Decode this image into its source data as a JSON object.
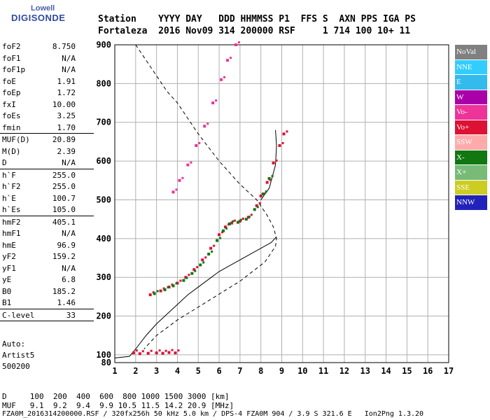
{
  "logo": {
    "line1": "Lowell",
    "line2": "DIGISONDE"
  },
  "header": {
    "line1": "Station    YYYY DAY   DDD HHMMSS P1  FFS S  AXN PPS IGA PS",
    "line2": "Fortaleza  2016 Nov09 314 200000 RSF     1 714 100 10+ 11"
  },
  "params": {
    "group1": [
      {
        "name": "foF2",
        "value": "8.750"
      },
      {
        "name": "foF1",
        "value": "N/A"
      },
      {
        "name": "foF1p",
        "value": "N/A"
      },
      {
        "name": "foE",
        "value": "1.91"
      },
      {
        "name": "foEp",
        "value": "1.72"
      },
      {
        "name": "fxI",
        "value": "10.00"
      },
      {
        "name": "foEs",
        "value": "3.25"
      },
      {
        "name": "fmin",
        "value": "1.70"
      }
    ],
    "group2": [
      {
        "name": "MUF(D)",
        "value": "20.89"
      },
      {
        "name": "M(D)",
        "value": "2.39"
      },
      {
        "name": "D",
        "value": "N/A"
      }
    ],
    "group3": [
      {
        "name": "h`F",
        "value": "255.0"
      },
      {
        "name": "h`F2",
        "value": "255.0"
      },
      {
        "name": "h`E",
        "value": "100.7"
      },
      {
        "name": "h`Es",
        "value": "105.0"
      }
    ],
    "group4": [
      {
        "name": "hmF2",
        "value": "405.1"
      },
      {
        "name": "hmF1",
        "value": "N/A"
      },
      {
        "name": "hmE",
        "value": "96.9"
      },
      {
        "name": "yF2",
        "value": "159.2"
      },
      {
        "name": "yF1",
        "value": "N/A"
      },
      {
        "name": "yE",
        "value": "6.8"
      },
      {
        "name": "B0",
        "value": "185.2"
      },
      {
        "name": "B1",
        "value": "1.46"
      }
    ],
    "group5": [
      {
        "name": "C-level",
        "value": "33"
      }
    ]
  },
  "autoscale": {
    "line1": "Auto:",
    "line2": "Artist5",
    "line3": "500200"
  },
  "footer": {
    "d_line": "D     100  200  400  600  800 1000 1500 3000 [km]",
    "muf_line": "MUF   9.1  9.2  9.4  9.9 10.5 11.5 14.2 20.9 [MHz]",
    "file_line": "FZA0M_2016314200000.RSF / 320fx256h 50 kHz 5.0 km / DPS-4 FZA0M 904 / 3.9 S 321.6 E   Ion2Png 1.3.20"
  },
  "legend": [
    {
      "label": "NoVal",
      "color": "#808080"
    },
    {
      "label": "NNE",
      "color": "#33ccff"
    },
    {
      "label": "E",
      "color": "#33bbee"
    },
    {
      "label": "W",
      "color": "#aa00aa"
    },
    {
      "label": "Vo-",
      "color": "#ee3399"
    },
    {
      "label": "Vo+",
      "color": "#dd1133"
    },
    {
      "label": "SSW",
      "color": "#ffaaaa"
    },
    {
      "label": "X-",
      "color": "#117711"
    },
    {
      "label": "X+",
      "color": "#77bb77"
    },
    {
      "label": "SSE",
      "color": "#cccc22"
    },
    {
      "label": "NNW",
      "color": "#2222bb"
    }
  ],
  "chart_data": {
    "type": "scatter",
    "title": "",
    "xlabel": "",
    "ylabel": "",
    "xlim": [
      1,
      17
    ],
    "ylim": [
      80,
      900
    ],
    "xticks": [
      1,
      2,
      3,
      4,
      5,
      6,
      7,
      8,
      9,
      10,
      11,
      12,
      13,
      14,
      15,
      16,
      17
    ],
    "yticks": [
      100,
      200,
      300,
      400,
      500,
      600,
      700,
      800,
      900
    ],
    "grid": true,
    "series": [
      {
        "name": "Vo+",
        "color": "#dd1133",
        "x": [
          2.7,
          3.2,
          3.6,
          4.0,
          4.4,
          4.8,
          5.2,
          5.6,
          6.0,
          6.3,
          6.6,
          7.0,
          7.4,
          7.8,
          8.0,
          8.3,
          8.6,
          8.9,
          9.1
        ],
        "y": [
          255,
          265,
          275,
          285,
          300,
          320,
          345,
          375,
          410,
          430,
          440,
          445,
          455,
          485,
          510,
          545,
          595,
          640,
          670
        ]
      },
      {
        "name": "X-",
        "color": "#117711",
        "x": [
          2.9,
          3.4,
          3.8,
          4.3,
          4.7,
          5.1,
          5.5,
          5.9,
          6.2,
          6.5,
          6.9,
          7.3,
          7.7,
          8.1,
          8.4
        ],
        "y": [
          258,
          268,
          278,
          292,
          310,
          332,
          360,
          395,
          420,
          438,
          442,
          450,
          475,
          515,
          555
        ]
      },
      {
        "name": "Vo-",
        "color": "#ee3399",
        "x": [
          3.8,
          4.1,
          4.5,
          4.9,
          5.3,
          5.7,
          6.1,
          6.4,
          6.8
        ],
        "y": [
          520,
          550,
          590,
          640,
          690,
          750,
          810,
          860,
          900
        ]
      },
      {
        "name": "Es",
        "color": "#dd1133",
        "x": [
          1.9,
          2.2,
          2.6,
          3.0,
          3.3,
          3.6,
          3.9
        ],
        "y": [
          105,
          103,
          104,
          105,
          104,
          106,
          105
        ]
      }
    ],
    "profile_line": {
      "x": [
        1.0,
        1.7,
        2.0,
        2.5,
        3.0,
        3.5,
        4.0,
        4.5,
        5.0,
        5.5,
        6.0,
        6.5,
        7.0,
        7.5,
        8.0,
        8.5,
        8.75
      ],
      "y": [
        92,
        96,
        115,
        150,
        180,
        205,
        230,
        255,
        275,
        295,
        315,
        330,
        345,
        360,
        375,
        390,
        405
      ]
    },
    "virtual_curve": {
      "x": [
        8.0,
        8.4,
        8.7,
        8.75,
        8.7
      ],
      "y": [
        500,
        530,
        590,
        640,
        680
      ]
    },
    "dashed_curve": {
      "x": [
        2.0,
        2.5,
        3.0,
        3.5,
        4.0,
        5.0,
        6.0,
        7.0,
        7.8,
        8.3,
        8.6,
        8.75,
        8.7,
        8.2,
        7.0,
        5.5,
        4.0,
        3.0,
        2.4
      ],
      "y": [
        900,
        860,
        820,
        780,
        750,
        670,
        600,
        540,
        500,
        460,
        430,
        400,
        380,
        340,
        290,
        240,
        190,
        150,
        115
      ]
    }
  }
}
